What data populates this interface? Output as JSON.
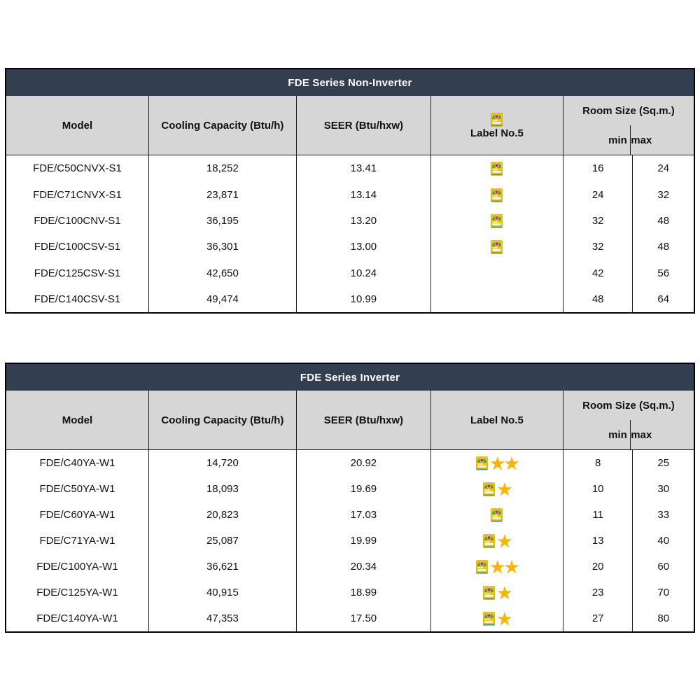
{
  "colors": {
    "title_bar_bg": "#333f50",
    "title_text": "#ffffff",
    "header_bg": "#d6d6d6",
    "grid_line": "#1f1f1f",
    "outer_border": "#000000",
    "star": "#f5b50a",
    "label_yellow": "#f2c300",
    "label_green": "#2f9e49",
    "label_red": "#e03131",
    "label_teal": "#3aa0b5"
  },
  "icons": {
    "energy_label": "energy-label-no5-icon",
    "star": "star-icon"
  },
  "tables": [
    {
      "title": "FDE Series Non-Inverter",
      "headers": {
        "model": "Model",
        "cooling": "Cooling Capacity (Btu/h)",
        "seer": "SEER (Btu/hxw)",
        "label": "Label No.5",
        "room": "Room Size (Sq.m.)",
        "min": "min",
        "max": "max"
      },
      "label_header_icon": true,
      "rows": [
        {
          "model": "FDE/C50CNVX-S1",
          "cooling": "18,252",
          "seer": "13.41",
          "label5": true,
          "stars": 0,
          "min": "16",
          "max": "24"
        },
        {
          "model": "FDE/C71CNVX-S1",
          "cooling": "23,871",
          "seer": "13.14",
          "label5": true,
          "stars": 0,
          "min": "24",
          "max": "32"
        },
        {
          "model": "FDE/C100CNV-S1",
          "cooling": "36,195",
          "seer": "13.20",
          "label5": true,
          "stars": 0,
          "min": "32",
          "max": "48"
        },
        {
          "model": "FDE/C100CSV-S1",
          "cooling": "36,301",
          "seer": "13.00",
          "label5": true,
          "stars": 0,
          "min": "32",
          "max": "48"
        },
        {
          "model": "FDE/C125CSV-S1",
          "cooling": "42,650",
          "seer": "10.24",
          "label5": false,
          "stars": 0,
          "min": "42",
          "max": "56"
        },
        {
          "model": "FDE/C140CSV-S1",
          "cooling": "49,474",
          "seer": "10.99",
          "label5": false,
          "stars": 0,
          "min": "48",
          "max": "64"
        }
      ]
    },
    {
      "title": "FDE Series Inverter",
      "headers": {
        "model": "Model",
        "cooling": "Cooling Capacity (Btu/h)",
        "seer": "SEER (Btu/hxw)",
        "label": "Label No.5",
        "room": "Room Size (Sq.m.)",
        "min": "min",
        "max": "max"
      },
      "label_header_icon": false,
      "rows": [
        {
          "model": "FDE/C40YA-W1",
          "cooling": "14,720",
          "seer": "20.92",
          "label5": true,
          "stars": 2,
          "min": "8",
          "max": "25"
        },
        {
          "model": "FDE/C50YA-W1",
          "cooling": "18,093",
          "seer": "19.69",
          "label5": true,
          "stars": 1,
          "min": "10",
          "max": "30"
        },
        {
          "model": "FDE/C60YA-W1",
          "cooling": "20,823",
          "seer": "17.03",
          "label5": true,
          "stars": 0,
          "min": "11",
          "max": "33"
        },
        {
          "model": "FDE/C71YA-W1",
          "cooling": "25,087",
          "seer": "19.99",
          "label5": true,
          "stars": 1,
          "min": "13",
          "max": "40"
        },
        {
          "model": "FDE/C100YA-W1",
          "cooling": "36,621",
          "seer": "20.34",
          "label5": true,
          "stars": 2,
          "min": "20",
          "max": "60"
        },
        {
          "model": "FDE/C125YA-W1",
          "cooling": "40,915",
          "seer": "18.99",
          "label5": true,
          "stars": 1,
          "min": "23",
          "max": "70"
        },
        {
          "model": "FDE/C140YA-W1",
          "cooling": "47,353",
          "seer": "17.50",
          "label5": true,
          "stars": 1,
          "min": "27",
          "max": "80"
        }
      ]
    }
  ]
}
